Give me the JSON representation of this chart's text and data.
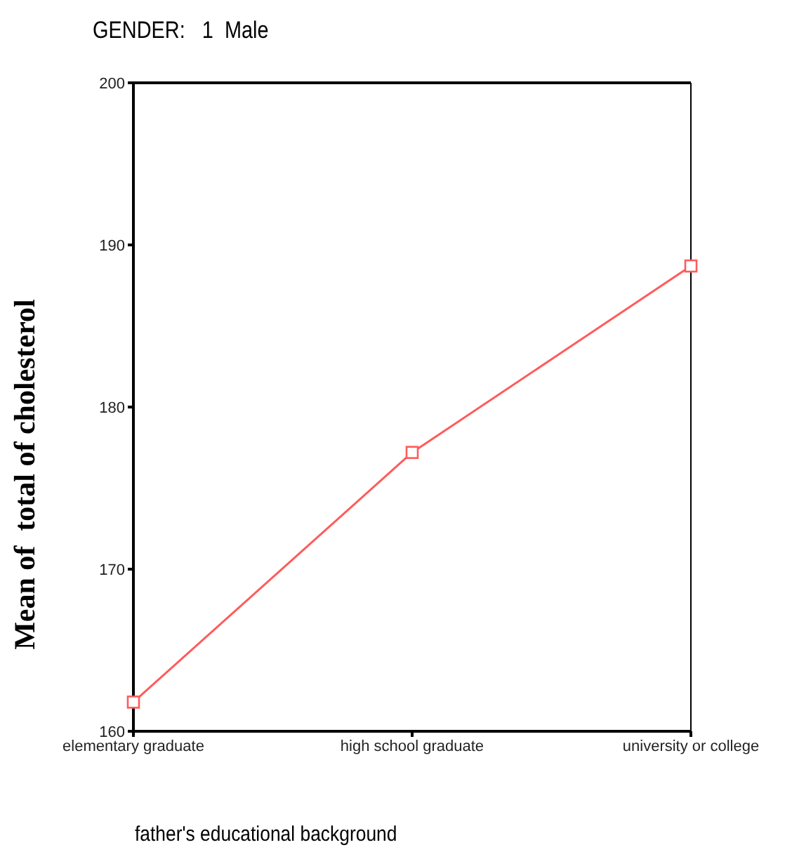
{
  "chart_data": {
    "type": "line",
    "title": "GENDER:   1  Male",
    "xlabel": "father's educational background",
    "ylabel": "Mean of  total of cholesterol",
    "categories": [
      "elementary graduate",
      "high school graduate",
      "university or college"
    ],
    "series": [
      {
        "color": "#ff5b5b",
        "values": [
          161.8,
          177.2,
          188.7
        ]
      }
    ],
    "ylim": [
      160,
      200
    ],
    "yticks": [
      160,
      170,
      180,
      190,
      200
    ],
    "grid": false,
    "legend": false,
    "marker": "square",
    "line_style": "solid"
  }
}
